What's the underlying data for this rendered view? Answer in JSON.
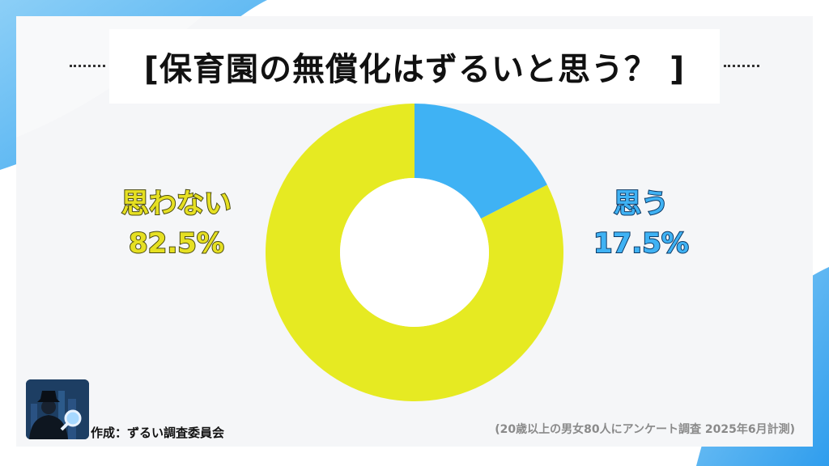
{
  "title": "[保育園の無償化はずるいと思う？ ]",
  "chart_data": {
    "type": "pie",
    "variant": "donut",
    "slices": [
      {
        "label": "思う",
        "value": 17.5,
        "display": "17.5%",
        "color": "#3fb2f4"
      },
      {
        "label": "思わない",
        "value": 82.5,
        "display": "82.5%",
        "color": "#e6ea22"
      }
    ]
  },
  "footer": {
    "credit": "作成：ずるい調査委員会",
    "note": "(20歳以上の男女80人にアンケート調査 2025年6月計測)"
  },
  "colors": {
    "accent_blue": "#3fb2f4",
    "accent_yellow": "#e6ea22",
    "background_blue": "#5ab8f4"
  },
  "logo": {
    "icon": "detective-magnifier-icon"
  }
}
